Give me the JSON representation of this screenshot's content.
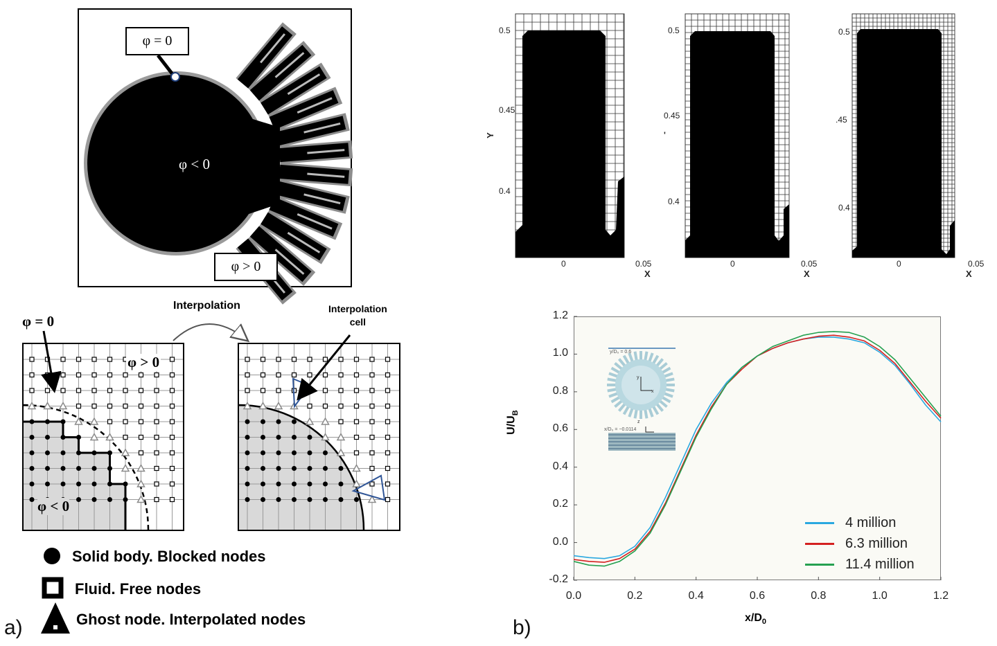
{
  "panel_a": {
    "letter": "a)",
    "top": {
      "phi_zero": "φ = 0",
      "phi_neg": "φ < 0",
      "phi_pos": "φ > 0"
    },
    "bottom": {
      "phi_zero": "φ = 0",
      "phi_pos": "φ > 0",
      "phi_neg": "φ < 0",
      "arrow_label": "Interpolation",
      "cell_label_line1": "Interpolation",
      "cell_label_line2": "cell"
    },
    "legend": [
      {
        "icon": "filled-circle-icon",
        "label": "Solid body. Blocked nodes"
      },
      {
        "icon": "hollow-square-icon",
        "label": "Fluid. Free nodes"
      },
      {
        "icon": "triangle-icon",
        "label": "Ghost node. Interpolated nodes"
      }
    ]
  },
  "panel_b": {
    "letter": "b)",
    "meshes": [
      {
        "ylabel": "Y",
        "yticks": [
          "0.5",
          "0.45",
          "0.4"
        ],
        "xticks": [
          "0",
          "0.05"
        ],
        "xlabel": "X"
      },
      {
        "ylabel": "'",
        "yticks": [
          "0.5",
          "0.45",
          "0.4"
        ],
        "xticks": [
          "0",
          "0.05"
        ],
        "xlabel": "X"
      },
      {
        "ylabel": "",
        "yticks": [
          "0.5",
          ".45",
          "0.4"
        ],
        "xticks": [
          "0",
          "0.05"
        ],
        "xlabel": "X"
      }
    ],
    "inset": {
      "top_label": "y/D₀ = 0.6",
      "bottom_label": "x/D₀ = −0.0114",
      "axis_y": "y",
      "axis_x": "x",
      "axis_z": "z"
    }
  },
  "chart_data": {
    "type": "line",
    "title": "",
    "xlabel": "x/D",
    "xlabel_sub": "0",
    "ylabel": "U/U",
    "ylabel_sub": "B",
    "xlim": [
      0.0,
      1.2
    ],
    "ylim": [
      -0.2,
      1.2
    ],
    "xticks": [
      "0.0",
      "0.2",
      "0.4",
      "0.6",
      "0.8",
      "1.0",
      "1.2"
    ],
    "yticks": [
      "-0.2",
      "0.0",
      "0.2",
      "0.4",
      "0.6",
      "0.8",
      "1.0",
      "1.2"
    ],
    "legend_position": "bottom-right",
    "series": [
      {
        "name": "4 million",
        "color": "#2aa8e0",
        "x": [
          0.0,
          0.05,
          0.1,
          0.15,
          0.2,
          0.25,
          0.3,
          0.35,
          0.4,
          0.45,
          0.5,
          0.55,
          0.6,
          0.65,
          0.7,
          0.75,
          0.8,
          0.85,
          0.9,
          0.95,
          1.0,
          1.05,
          1.1,
          1.15,
          1.2
        ],
        "y": [
          -0.07,
          -0.08,
          -0.085,
          -0.07,
          -0.02,
          0.08,
          0.24,
          0.42,
          0.6,
          0.74,
          0.85,
          0.93,
          0.99,
          1.03,
          1.06,
          1.08,
          1.09,
          1.09,
          1.08,
          1.06,
          1.01,
          0.94,
          0.84,
          0.73,
          0.64
        ]
      },
      {
        "name": "6.3 million",
        "color": "#d42020",
        "x": [
          0.0,
          0.05,
          0.1,
          0.15,
          0.2,
          0.25,
          0.3,
          0.35,
          0.4,
          0.45,
          0.5,
          0.55,
          0.6,
          0.65,
          0.7,
          0.75,
          0.8,
          0.85,
          0.9,
          0.95,
          1.0,
          1.05,
          1.1,
          1.15,
          1.2
        ],
        "y": [
          -0.09,
          -0.1,
          -0.105,
          -0.085,
          -0.035,
          0.06,
          0.21,
          0.39,
          0.57,
          0.72,
          0.84,
          0.92,
          0.99,
          1.03,
          1.06,
          1.08,
          1.095,
          1.1,
          1.09,
          1.07,
          1.02,
          0.95,
          0.85,
          0.75,
          0.66
        ]
      },
      {
        "name": "11.4 million",
        "color": "#25a050",
        "x": [
          0.0,
          0.05,
          0.1,
          0.15,
          0.2,
          0.25,
          0.3,
          0.35,
          0.4,
          0.45,
          0.5,
          0.55,
          0.6,
          0.65,
          0.7,
          0.75,
          0.8,
          0.85,
          0.9,
          0.95,
          1.0,
          1.05,
          1.1,
          1.15,
          1.2
        ],
        "y": [
          -0.1,
          -0.12,
          -0.125,
          -0.1,
          -0.045,
          0.05,
          0.2,
          0.38,
          0.56,
          0.71,
          0.84,
          0.93,
          0.99,
          1.04,
          1.07,
          1.1,
          1.115,
          1.12,
          1.115,
          1.09,
          1.04,
          0.97,
          0.87,
          0.77,
          0.67
        ]
      }
    ]
  },
  "colors": {
    "solid": "#000000",
    "grey_fill": "#d9d9d9",
    "ghost": "#8a8a8a",
    "interp_cell": "#2f5597",
    "plot_bg": "#fafaf5"
  }
}
